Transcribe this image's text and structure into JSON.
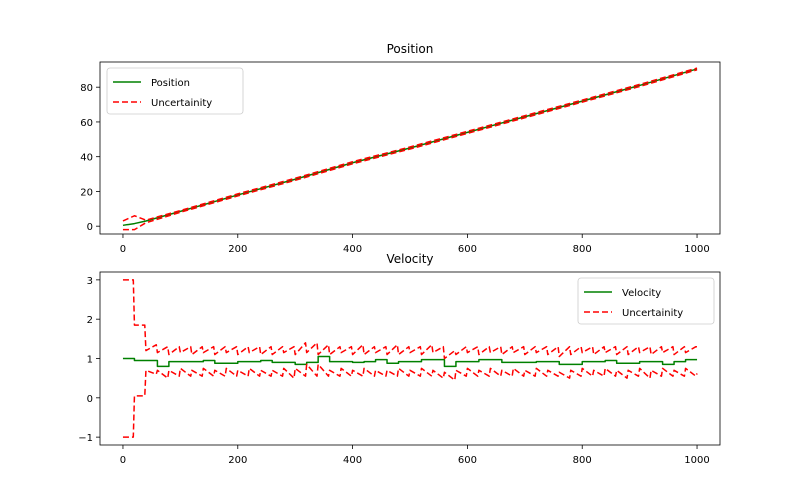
{
  "chart_data": [
    {
      "type": "line",
      "title": "Position",
      "xlabel": "",
      "ylabel": "",
      "xlim": [
        -40,
        1040
      ],
      "ylim": [
        -4.5,
        94.5
      ],
      "xticks": [
        0,
        200,
        400,
        600,
        800,
        1000
      ],
      "xtick_labels": [
        "0",
        "200",
        "400",
        "600",
        "800",
        "1000"
      ],
      "yticks": [
        0,
        20,
        40,
        60,
        80
      ],
      "ytick_labels": [
        "0",
        "20",
        "40",
        "60",
        "80"
      ],
      "grid": false,
      "legend": {
        "location": "upper-left",
        "entries": [
          "Position",
          "Uncertainity"
        ]
      },
      "series": [
        {
          "name": "Position",
          "color": "#008000",
          "style": "solid",
          "x": [
            0,
            20,
            40,
            100,
            200,
            300,
            400,
            500,
            600,
            700,
            800,
            900,
            1000
          ],
          "y": [
            0.5,
            1.5,
            3.0,
            8.5,
            18.0,
            27.0,
            36.5,
            45.0,
            54.0,
            63.0,
            72.0,
            81.0,
            90.5
          ]
        },
        {
          "name": "Uncertainity",
          "role": "upper",
          "color": "#ff0000",
          "style": "dashed",
          "x": [
            0,
            20,
            40,
            100,
            200,
            300,
            400,
            500,
            600,
            700,
            800,
            900,
            1000
          ],
          "y": [
            3.0,
            6.0,
            3.5,
            9.0,
            18.6,
            27.6,
            37.1,
            45.6,
            54.6,
            63.6,
            72.6,
            81.6,
            91.0
          ]
        },
        {
          "name": "Uncertainity",
          "role": "lower",
          "color": "#ff0000",
          "style": "dashed",
          "x": [
            0,
            20,
            40,
            100,
            200,
            300,
            400,
            500,
            600,
            700,
            800,
            900,
            1000
          ],
          "y": [
            -2.0,
            -2.0,
            2.0,
            8.0,
            17.4,
            26.4,
            35.9,
            44.4,
            53.4,
            62.4,
            71.4,
            80.4,
            90.0
          ]
        }
      ]
    },
    {
      "type": "line",
      "title": "Velocity",
      "xlabel": "",
      "ylabel": "",
      "xlim": [
        -40,
        1040
      ],
      "ylim": [
        -1.2,
        3.2
      ],
      "xticks": [
        0,
        200,
        400,
        600,
        800,
        1000
      ],
      "xtick_labels": [
        "0",
        "200",
        "400",
        "600",
        "800",
        "1000"
      ],
      "yticks": [
        -1,
        0,
        1,
        2,
        3
      ],
      "ytick_labels": [
        "−1",
        "0",
        "1",
        "2",
        "3"
      ],
      "grid": false,
      "legend": {
        "location": "upper-right",
        "entries": [
          "Velocity",
          "Uncertainity"
        ]
      },
      "series": [
        {
          "name": "Velocity",
          "color": "#008000",
          "style": "solid",
          "step": true,
          "x": [
            0,
            20,
            40,
            60,
            80,
            100,
            140,
            160,
            180,
            200,
            220,
            240,
            260,
            280,
            300,
            320,
            340,
            360,
            400,
            420,
            440,
            460,
            480,
            500,
            520,
            540,
            560,
            580,
            600,
            620,
            640,
            660,
            680,
            700,
            720,
            740,
            760,
            780,
            800,
            820,
            840,
            860,
            880,
            900,
            920,
            940,
            960,
            980,
            1000
          ],
          "y": [
            1.0,
            0.95,
            0.95,
            0.8,
            0.92,
            0.92,
            0.95,
            0.88,
            0.88,
            0.92,
            0.92,
            0.95,
            0.9,
            0.9,
            0.85,
            0.9,
            1.05,
            0.92,
            0.9,
            0.92,
            0.97,
            0.88,
            0.92,
            0.92,
            0.97,
            0.97,
            0.8,
            0.92,
            0.92,
            0.97,
            0.97,
            0.9,
            0.9,
            0.9,
            0.92,
            0.92,
            0.85,
            0.85,
            0.92,
            0.92,
            0.95,
            0.88,
            0.88,
            0.92,
            0.92,
            0.85,
            0.92,
            0.97,
            0.97
          ]
        },
        {
          "name": "Uncertainity",
          "role": "upper",
          "color": "#ff0000",
          "style": "dashed",
          "x": [
            0,
            18,
            20,
            38,
            40,
            58,
            60,
            78,
            80,
            98,
            100,
            118,
            120,
            138,
            140,
            158,
            160,
            178,
            180,
            198,
            200,
            218,
            220,
            238,
            240,
            258,
            260,
            278,
            280,
            298,
            300,
            318,
            320,
            338,
            340,
            358,
            360,
            378,
            380,
            398,
            400,
            418,
            420,
            438,
            440,
            458,
            460,
            478,
            480,
            498,
            500,
            518,
            520,
            538,
            540,
            558,
            560,
            578,
            580,
            598,
            600,
            618,
            620,
            638,
            640,
            658,
            660,
            678,
            680,
            698,
            700,
            718,
            720,
            738,
            740,
            758,
            760,
            778,
            780,
            798,
            800,
            818,
            820,
            838,
            840,
            858,
            860,
            878,
            880,
            898,
            900,
            918,
            920,
            938,
            940,
            958,
            960,
            978,
            980,
            998,
            1000
          ],
          "y": [
            3.0,
            3.0,
            1.85,
            1.85,
            1.2,
            1.35,
            1.15,
            1.3,
            1.1,
            1.3,
            1.15,
            1.3,
            1.1,
            1.3,
            1.15,
            1.3,
            1.1,
            1.3,
            1.15,
            1.3,
            1.1,
            1.3,
            1.15,
            1.3,
            1.1,
            1.3,
            1.1,
            1.3,
            1.15,
            1.3,
            1.1,
            1.4,
            1.15,
            1.4,
            1.1,
            1.35,
            1.1,
            1.3,
            1.15,
            1.3,
            1.1,
            1.35,
            1.1,
            1.3,
            1.15,
            1.3,
            1.1,
            1.35,
            1.1,
            1.3,
            1.15,
            1.3,
            1.1,
            1.35,
            1.15,
            1.3,
            1.0,
            1.2,
            1.1,
            1.3,
            1.15,
            1.3,
            1.1,
            1.3,
            1.15,
            1.3,
            1.1,
            1.3,
            1.15,
            1.3,
            1.1,
            1.3,
            1.15,
            1.3,
            1.1,
            1.3,
            1.05,
            1.3,
            1.1,
            1.3,
            1.15,
            1.3,
            1.1,
            1.3,
            1.15,
            1.3,
            1.1,
            1.3,
            1.1,
            1.3,
            1.15,
            1.3,
            1.1,
            1.3,
            1.15,
            1.3,
            1.1,
            1.3,
            1.15,
            1.3,
            1.3
          ]
        },
        {
          "name": "Uncertainity",
          "role": "lower",
          "color": "#ff0000",
          "style": "dashed",
          "x": [
            0,
            18,
            20,
            38,
            40,
            58,
            60,
            78,
            80,
            98,
            100,
            118,
            120,
            138,
            140,
            158,
            160,
            178,
            180,
            198,
            200,
            218,
            220,
            238,
            240,
            258,
            260,
            278,
            280,
            298,
            300,
            318,
            320,
            338,
            340,
            358,
            360,
            378,
            380,
            398,
            400,
            418,
            420,
            438,
            440,
            458,
            460,
            478,
            480,
            498,
            500,
            518,
            520,
            538,
            540,
            558,
            560,
            578,
            580,
            598,
            600,
            618,
            620,
            638,
            640,
            658,
            660,
            678,
            680,
            698,
            700,
            718,
            720,
            738,
            740,
            758,
            760,
            778,
            780,
            798,
            800,
            818,
            820,
            838,
            840,
            858,
            860,
            878,
            880,
            898,
            900,
            918,
            920,
            938,
            940,
            958,
            960,
            978,
            980,
            998,
            1000
          ],
          "y": [
            -1.0,
            -1.0,
            0.05,
            0.05,
            0.7,
            0.6,
            0.7,
            0.5,
            0.7,
            0.55,
            0.75,
            0.55,
            0.7,
            0.55,
            0.75,
            0.55,
            0.7,
            0.55,
            0.75,
            0.55,
            0.7,
            0.55,
            0.75,
            0.55,
            0.7,
            0.55,
            0.7,
            0.55,
            0.75,
            0.5,
            0.75,
            0.55,
            0.85,
            0.55,
            0.85,
            0.55,
            0.7,
            0.55,
            0.75,
            0.55,
            0.7,
            0.55,
            0.75,
            0.55,
            0.7,
            0.55,
            0.7,
            0.55,
            0.75,
            0.55,
            0.7,
            0.55,
            0.75,
            0.55,
            0.7,
            0.5,
            0.65,
            0.45,
            0.7,
            0.55,
            0.75,
            0.55,
            0.7,
            0.55,
            0.75,
            0.55,
            0.7,
            0.55,
            0.75,
            0.55,
            0.7,
            0.55,
            0.75,
            0.55,
            0.7,
            0.55,
            0.65,
            0.5,
            0.7,
            0.55,
            0.75,
            0.55,
            0.7,
            0.55,
            0.75,
            0.55,
            0.7,
            0.5,
            0.7,
            0.55,
            0.75,
            0.5,
            0.7,
            0.55,
            0.75,
            0.55,
            0.7,
            0.55,
            0.75,
            0.55,
            0.62
          ]
        }
      ]
    }
  ]
}
